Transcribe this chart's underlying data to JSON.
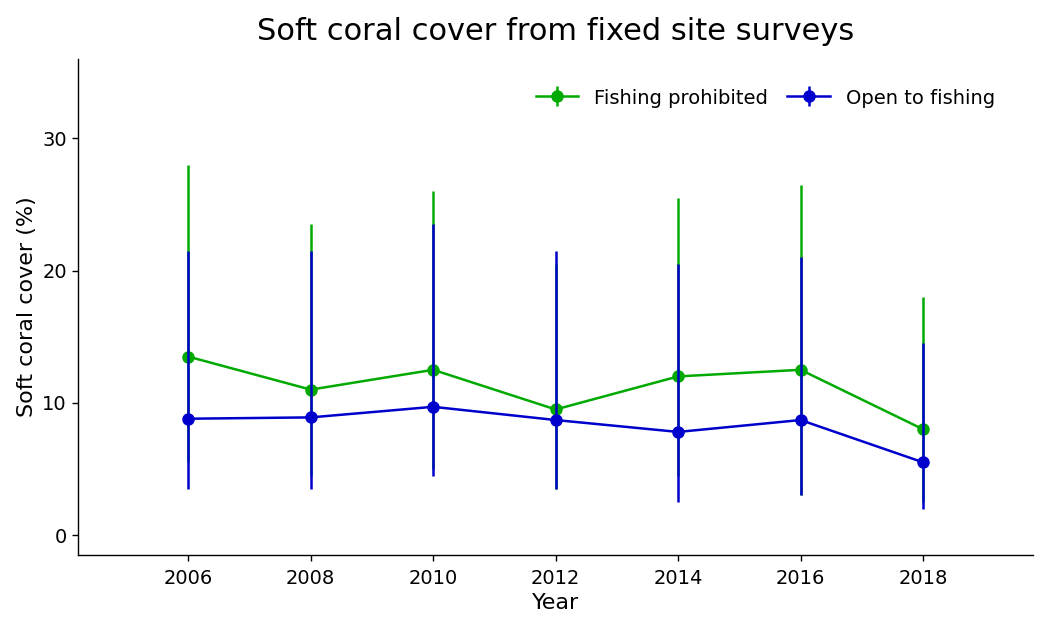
{
  "title": "Soft coral cover from fixed site surveys",
  "xlabel": "Year",
  "ylabel": "Soft coral cover (%)",
  "years": [
    2006,
    2008,
    2010,
    2012,
    2014,
    2016,
    2018
  ],
  "green_mean": [
    13.5,
    11.0,
    12.5,
    9.5,
    12.0,
    12.5,
    8.0
  ],
  "green_upper": [
    28.0,
    23.5,
    26.0,
    20.5,
    25.5,
    26.5,
    18.0
  ],
  "green_lower": [
    5.5,
    4.5,
    5.0,
    3.5,
    4.5,
    3.0,
    2.5
  ],
  "blue_mean": [
    8.8,
    8.9,
    9.7,
    8.7,
    7.8,
    8.7,
    5.5
  ],
  "blue_upper": [
    21.5,
    21.5,
    23.5,
    21.5,
    20.5,
    21.0,
    14.5
  ],
  "blue_lower": [
    3.5,
    3.5,
    4.5,
    3.5,
    2.5,
    3.0,
    2.0
  ],
  "green_color": "#00AA00",
  "blue_color": "#0000CC",
  "background_color": "#FFFFFF",
  "ylim_min": -1.5,
  "ylim_max": 36,
  "yticks": [
    0,
    10,
    20,
    30
  ],
  "title_fontsize": 22,
  "label_fontsize": 16,
  "tick_fontsize": 14,
  "legend_fontsize": 14,
  "linewidth": 1.8,
  "markersize": 8
}
